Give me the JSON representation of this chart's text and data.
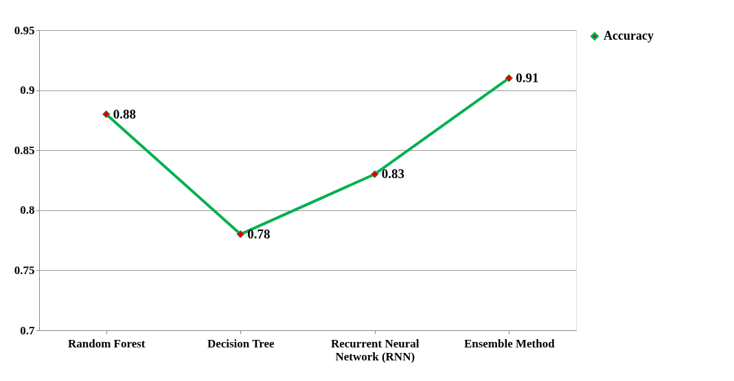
{
  "chart_data": {
    "type": "line",
    "categories": [
      "Random Forest",
      "Decision Tree",
      "Recurrent Neural Network (RNN)",
      "Ensemble Method"
    ],
    "series": [
      {
        "name": "Accuracy",
        "color": "#00b050",
        "values": [
          0.88,
          0.78,
          0.83,
          0.91
        ]
      }
    ],
    "ylim": [
      0.7,
      0.95
    ],
    "yticks": [
      0.7,
      0.75,
      0.8,
      0.85,
      0.9,
      0.95
    ],
    "grid": "y",
    "legend": "right",
    "marker": "diamond",
    "data_labels": true
  }
}
